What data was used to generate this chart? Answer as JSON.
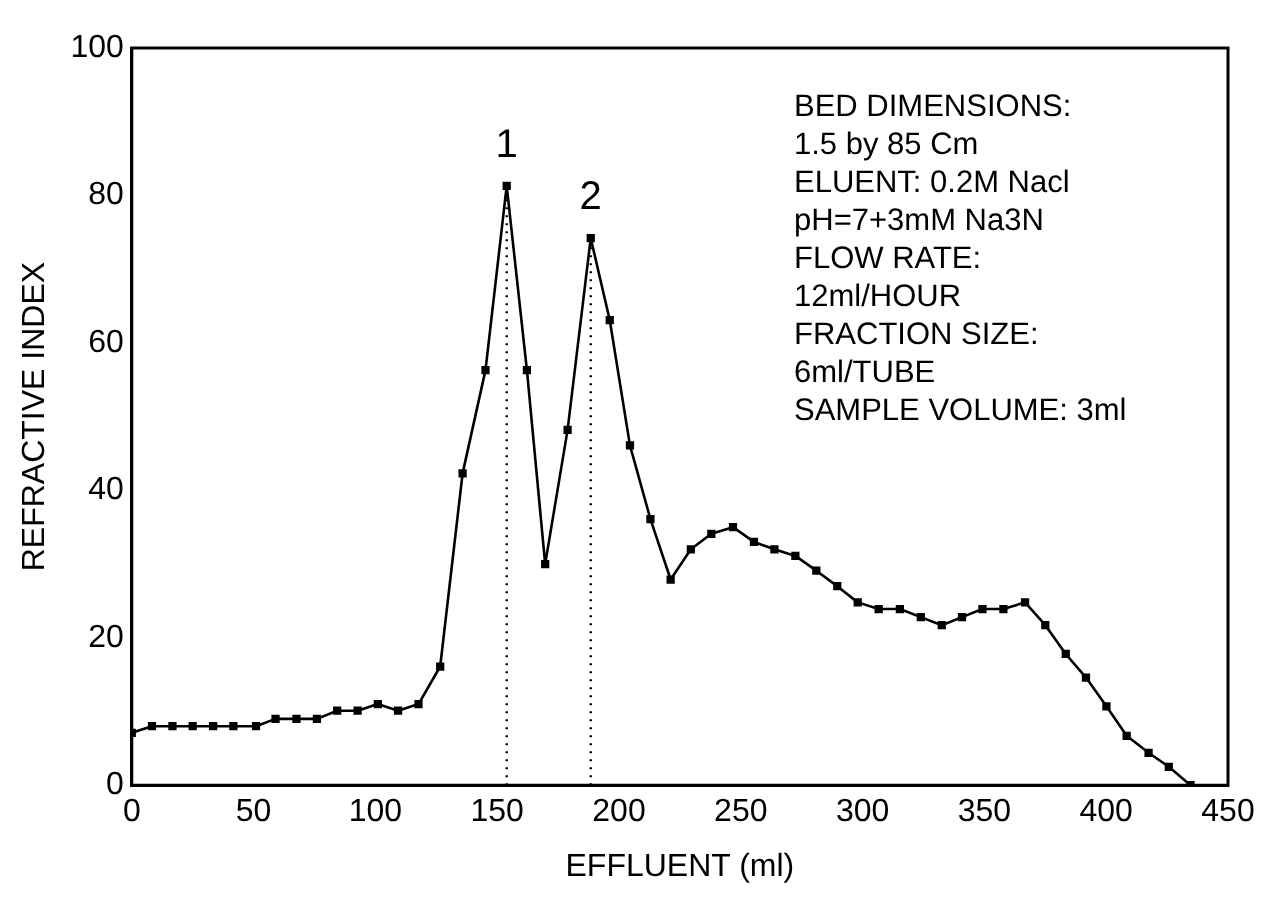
{
  "chart_data": {
    "type": "line",
    "xlabel": "EFFLUENT (ml)",
    "ylabel": "REFRACTIVE INDEX",
    "x": [
      0,
      8.3,
      16.7,
      25,
      33.4,
      41.7,
      51,
      59,
      67.6,
      76,
      84.3,
      92.7,
      101,
      109.3,
      117.7,
      126.6,
      135.8,
      145.2,
      153.9,
      162.2,
      169.7,
      178.9,
      188.4,
      196.2,
      204.5,
      212.9,
      221.2,
      229.5,
      237.9,
      246.8,
      255.4,
      263.8,
      272.4,
      281,
      289.6,
      298,
      306.6,
      315.3,
      323.9,
      332.5,
      340.8,
      349.2,
      357.8,
      366.7,
      375,
      383.4,
      391.7,
      400.1,
      408.4,
      417.4,
      425.7,
      434.6
    ],
    "series": [
      {
        "color": "#000000",
        "values": [
          7.1,
          8,
          8,
          8,
          8,
          8,
          8,
          9,
          9,
          9,
          10.1,
          10.1,
          11,
          10.1,
          11,
          16.1,
          42.3,
          56.3,
          81.3,
          56.3,
          30,
          48.2,
          74.2,
          63.1,
          46.1,
          36.1,
          27.9,
          32,
          34.1,
          35,
          33,
          32,
          31.1,
          29.1,
          27,
          24.8,
          23.9,
          23.9,
          22.8,
          21.7,
          22.8,
          23.9,
          23.9,
          24.8,
          21.7,
          17.8,
          14.6,
          10.7,
          6.7,
          4.4,
          2.5,
          0
        ]
      }
    ],
    "xlim": [
      0,
      450
    ],
    "xticks": [
      0,
      50,
      100,
      150,
      200,
      250,
      300,
      350,
      400,
      450
    ],
    "ylim": [
      0,
      100
    ],
    "yticks": [
      0,
      20,
      40,
      60,
      80,
      100
    ],
    "grid": false,
    "legend": false,
    "marker": "square",
    "line_style": "solid",
    "ref_lines": [
      {
        "axis": "x",
        "value": 153.9,
        "line_style": "dotted"
      },
      {
        "axis": "x",
        "value": 188.4,
        "line_style": "dotted"
      }
    ],
    "annotations": [
      {
        "text": "1",
        "x": 153.9,
        "y": 81.3
      },
      {
        "text": "2",
        "x": 188.4,
        "y": 74.2
      },
      "BED DIMENSIONS:",
      "1.5 by 85 Cm",
      "ELUENT: 0.2M Nacl",
      "pH=7+3mM Na3N",
      "FLOW RATE:",
      "12ml/HOUR",
      "FRACTION SIZE:",
      "6ml/TUBE",
      "SAMPLE VOLUME: 3ml"
    ]
  }
}
